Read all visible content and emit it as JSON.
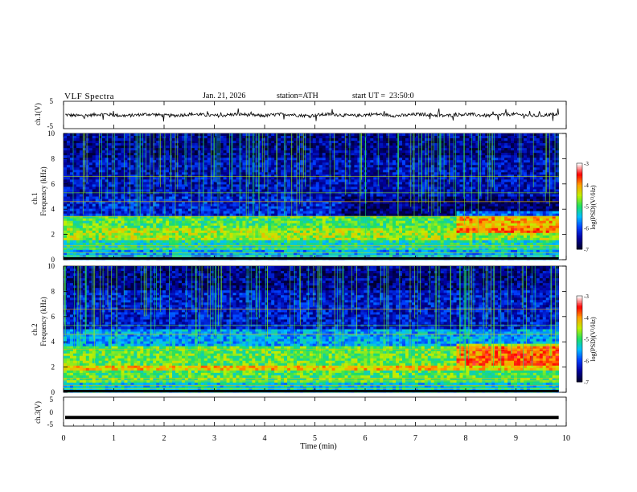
{
  "header": {
    "title": "VLF Spectra",
    "date": "Jan. 21, 2026",
    "station": "station=ATH",
    "start": "start UT =  23:50:0"
  },
  "chart_data": [
    {
      "type": "line",
      "panel": "ch1-waveform",
      "ylabel": "ch.1(V)",
      "ylim": [
        -5,
        5
      ],
      "yticks": [
        "5",
        "-5"
      ],
      "description_values": {
        "baseline": 0,
        "typical_amplitude": 0.6,
        "spike_amplitude": 1.5
      }
    },
    {
      "type": "heatmap",
      "panel": "ch1-spectrogram",
      "ylabel_channel": "ch.1",
      "ylabel": "Frequency (kHz)",
      "ylim": [
        0,
        10
      ],
      "yticks": [
        "0",
        "2",
        "4",
        "6",
        "8",
        "10"
      ],
      "bands": [
        {
          "fmin": 0.0,
          "fmax": 0.8,
          "level": -5.6
        },
        {
          "fmin": 0.8,
          "fmax": 1.5,
          "level": -5.2
        },
        {
          "fmin": 1.5,
          "fmax": 2.5,
          "level": -4.6
        },
        {
          "fmin": 2.5,
          "fmax": 3.5,
          "level": -4.9
        },
        {
          "fmin": 3.5,
          "fmax": 5.0,
          "level": -6.2
        },
        {
          "fmin": 5.0,
          "fmax": 8.0,
          "level": -6.4
        },
        {
          "fmin": 8.0,
          "fmax": 10.0,
          "level": -6.6
        }
      ],
      "colorbar": {
        "label": "log(PSD)(V²/Hz)",
        "min": -7,
        "max": -3,
        "ticks": [
          "-3",
          "-4",
          "-5",
          "-6",
          "-7"
        ]
      }
    },
    {
      "type": "heatmap",
      "panel": "ch2-spectrogram",
      "ylabel_channel": "ch.2",
      "ylabel": "Frequency (kHz)",
      "ylim": [
        0,
        10
      ],
      "yticks": [
        "0",
        "2",
        "4",
        "6",
        "8",
        "10"
      ],
      "bands": [
        {
          "fmin": 0.0,
          "fmax": 0.8,
          "level": -5.4
        },
        {
          "fmin": 0.8,
          "fmax": 1.8,
          "level": -4.9
        },
        {
          "fmin": 1.8,
          "fmax": 2.2,
          "level": -4.2
        },
        {
          "fmin": 2.2,
          "fmax": 3.6,
          "level": -4.8
        },
        {
          "fmin": 3.6,
          "fmax": 5.0,
          "level": -5.6
        },
        {
          "fmin": 5.0,
          "fmax": 8.0,
          "level": -6.3
        },
        {
          "fmin": 8.0,
          "fmax": 10.0,
          "level": -6.6
        }
      ],
      "colorbar": {
        "label": "log(PSD)(V²/Hz)",
        "min": -7,
        "max": -3,
        "ticks": [
          "-3",
          "-4",
          "-5",
          "-6",
          "-7"
        ]
      }
    },
    {
      "type": "line",
      "panel": "ch3-waveform",
      "ylabel": "ch.3(V)",
      "ylim": [
        -5,
        5
      ],
      "yticks": [
        "5",
        "0",
        "-5"
      ],
      "description_values": {
        "baseline": -2,
        "typical_amplitude": 0.1
      }
    }
  ],
  "xaxis": {
    "label": "Time (min)",
    "range": [
      0,
      10
    ],
    "ticks": [
      "0",
      "1",
      "2",
      "3",
      "4",
      "5",
      "6",
      "7",
      "8",
      "9",
      "10"
    ]
  },
  "colors": {
    "scale": [
      "#000030",
      "#0000a0",
      "#0040ff",
      "#00c0ff",
      "#20e060",
      "#c0f000",
      "#ffa000",
      "#ff0000",
      "#ffffff"
    ]
  }
}
